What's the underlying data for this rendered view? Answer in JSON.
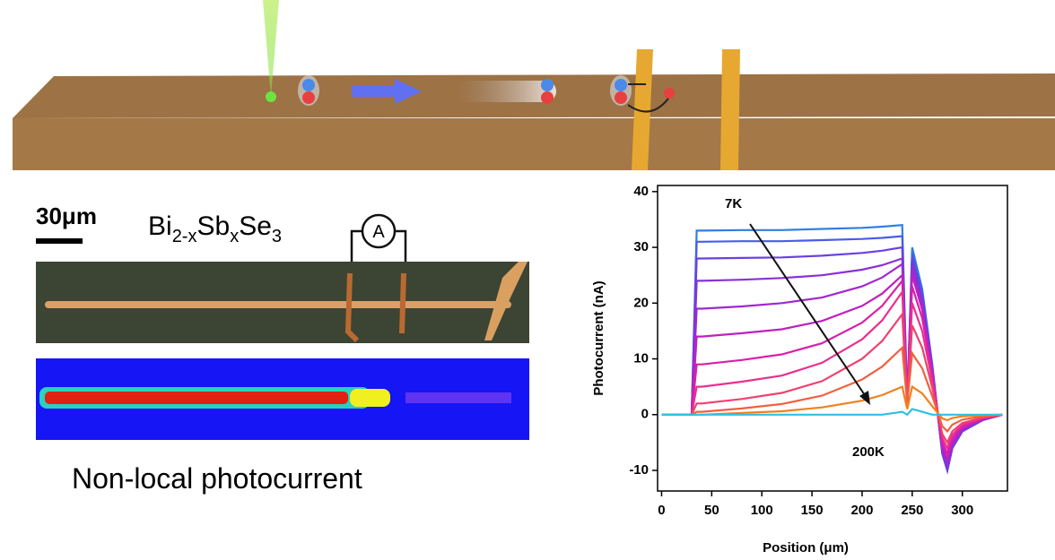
{
  "scale_bar": "30μm",
  "formula": [
    "Bi",
    "2-x",
    "Sb",
    "x",
    "Se",
    "3"
  ],
  "ammeter": "A",
  "caption": "Non-local photocurrent",
  "chart_data": {
    "type": "line",
    "xlabel": "Position (μm)",
    "ylabel": "Photocurrent (nA)",
    "annotations": [
      "7K",
      "200K"
    ],
    "xlim": [
      -4,
      345
    ],
    "ylim": [
      -13.7,
      41.1
    ],
    "xticks": [
      0,
      50,
      100,
      150,
      200,
      250,
      300
    ],
    "yticks": [
      -10,
      0,
      10,
      20,
      30,
      40
    ],
    "x": [
      0,
      30,
      35,
      40,
      80,
      120,
      160,
      200,
      220,
      240,
      245,
      250,
      260,
      270,
      280,
      285,
      290,
      300,
      320,
      340
    ],
    "series": [
      {
        "color": "#2f7fe0",
        "values": [
          0,
          0,
          33,
          33,
          33.1,
          33.1,
          33.3,
          33.5,
          33.7,
          34,
          2,
          30,
          22.5,
          9,
          -7,
          -10,
          -6,
          -3,
          -1,
          0
        ]
      },
      {
        "color": "#4a5ce8",
        "values": [
          0,
          0,
          31,
          31,
          31.1,
          31.1,
          31.3,
          31.5,
          31.7,
          32,
          2,
          29,
          21.8,
          8.7,
          -7,
          -10,
          -6,
          -3,
          -1,
          0
        ]
      },
      {
        "color": "#6a40e0",
        "values": [
          0,
          0,
          28,
          28,
          28.1,
          28.2,
          28.5,
          29,
          29.4,
          30,
          2,
          28,
          21,
          8.4,
          -7,
          -10,
          -6,
          -3,
          -1,
          0
        ]
      },
      {
        "color": "#8a30d8",
        "values": [
          0,
          0,
          24,
          24,
          24.2,
          24.5,
          25,
          26,
          26.8,
          28,
          2,
          27,
          20.3,
          8.1,
          -6.3,
          -9,
          -5.4,
          -2.7,
          -0.9,
          0
        ]
      },
      {
        "color": "#a028d0",
        "values": [
          0,
          0,
          19,
          19,
          19.4,
          20,
          21,
          23,
          24.6,
          27,
          2,
          26,
          19.5,
          7.8,
          -6.3,
          -9,
          -5.4,
          -2.7,
          -0.9,
          0
        ]
      },
      {
        "color": "#c020c0",
        "values": [
          0,
          0,
          14,
          14,
          14.6,
          15.3,
          16.8,
          19.5,
          21.7,
          25,
          2,
          25,
          18.8,
          7.5,
          -5.6,
          -8,
          -4.8,
          -2.4,
          -0.8,
          0
        ]
      },
      {
        "color": "#d820a8",
        "values": [
          0,
          0,
          9,
          9,
          9.8,
          10.8,
          12.8,
          16.5,
          19.5,
          24,
          2,
          23,
          17.3,
          6.9,
          -4.9,
          -7,
          -4.2,
          -2.1,
          -0.7,
          0
        ]
      },
      {
        "color": "#e83090",
        "values": [
          0,
          0,
          5,
          5,
          5.9,
          7,
          9.3,
          13.5,
          16.9,
          22,
          2,
          20,
          15,
          6,
          -4.2,
          -6,
          -3.6,
          -1.8,
          -0.6,
          0
        ]
      },
      {
        "color": "#f04070",
        "values": [
          0,
          0,
          2,
          2,
          2.8,
          3.9,
          6,
          10,
          13.2,
          18,
          2,
          16,
          12,
          4.8,
          -3.5,
          -5,
          -3,
          -1.5,
          -0.5,
          0
        ]
      },
      {
        "color": "#f06040",
        "values": [
          0,
          0,
          0.5,
          0.5,
          1.1,
          1.9,
          3.4,
          6.3,
          8.6,
          12,
          2,
          11,
          8.3,
          3.3,
          -2.1,
          -3,
          -1.8,
          -0.9,
          -0.3,
          0
        ]
      },
      {
        "color": "#f08020",
        "values": [
          0,
          0,
          0,
          0,
          0.3,
          0.6,
          1.3,
          2.5,
          3.5,
          5,
          1,
          5,
          3.8,
          1.5,
          -0.7,
          -1,
          -0.6,
          -0.3,
          -0.1,
          0
        ]
      },
      {
        "color": "#30c0e0",
        "values": [
          0,
          0,
          0,
          0,
          0,
          0,
          0,
          0,
          0,
          0.5,
          0,
          1,
          0.5,
          0,
          0,
          0,
          0,
          0,
          0,
          0
        ]
      }
    ]
  }
}
